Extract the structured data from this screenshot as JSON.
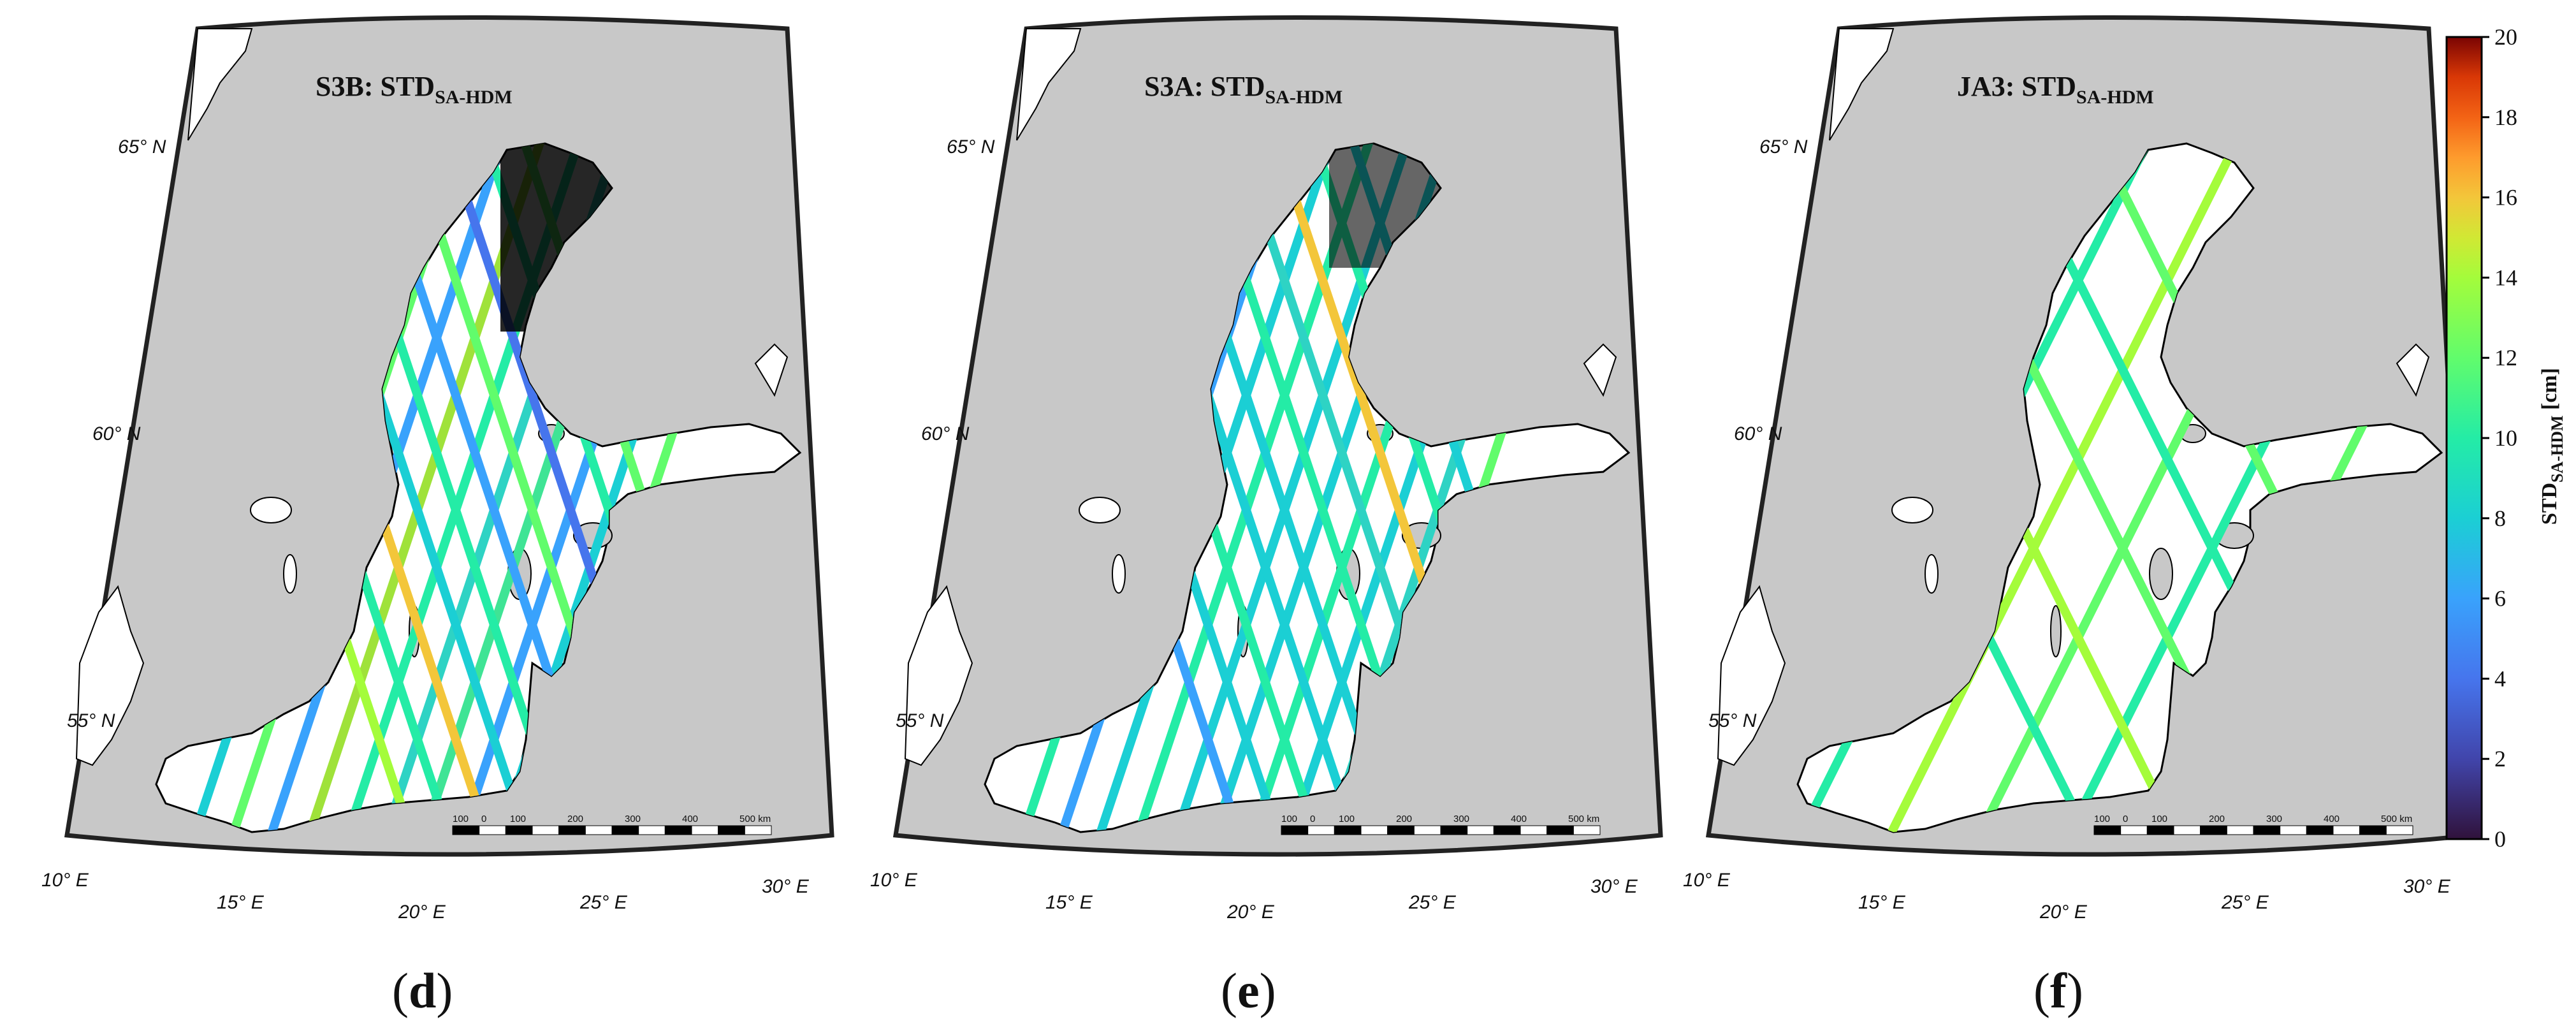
{
  "figure": {
    "panels": [
      {
        "id": "d",
        "title_main": "S3B: STD",
        "title_sub": "SA-HDM",
        "letter": "d",
        "lat_labels": [
          "65° N",
          "60° N",
          "55° N"
        ],
        "lon_labels": [
          "10° E",
          "15° E",
          "20° E",
          "25° E",
          "30° E"
        ],
        "scale_labels": [
          "100",
          "0",
          "100",
          "200",
          "300",
          "400",
          "500 km"
        ]
      },
      {
        "id": "e",
        "title_main": "S3A: STD",
        "title_sub": "SA-HDM",
        "letter": "e",
        "lat_labels": [
          "65° N",
          "60° N",
          "55° N"
        ],
        "lon_labels": [
          "10° E",
          "15° E",
          "20° E",
          "25° E",
          "30° E"
        ],
        "scale_labels": [
          "100",
          "0",
          "100",
          "200",
          "300",
          "400",
          "500 km"
        ]
      },
      {
        "id": "f",
        "title_main": "JA3: STD",
        "title_sub": "SA-HDM",
        "letter": "f",
        "lat_labels": [
          "65° N",
          "60° N",
          "55° N"
        ],
        "lon_labels": [
          "10° E",
          "15° E",
          "20° E",
          "25° E",
          "30° E"
        ],
        "scale_labels": [
          "100",
          "0",
          "100",
          "200",
          "300",
          "400",
          "500 km"
        ]
      }
    ],
    "colorbar": {
      "title_main": "STD",
      "title_sub": "SA-HDM",
      "title_unit": "[cm]",
      "ticks": [
        "20",
        "18",
        "16",
        "14",
        "12",
        "10",
        "8",
        "6",
        "4",
        "2",
        "0"
      ],
      "range": [
        0,
        20
      ],
      "colors": [
        "#30123b",
        "#4662d7",
        "#36aaf9",
        "#1ae4b6",
        "#72fe5e",
        "#c8ef34",
        "#faba39",
        "#f66b19",
        "#cb2a04",
        "#7a0403"
      ]
    },
    "colors": {
      "land": "#c8c8c8",
      "sea": "#ffffff",
      "no_data_track": "#000000",
      "coastline": "#000000"
    }
  }
}
